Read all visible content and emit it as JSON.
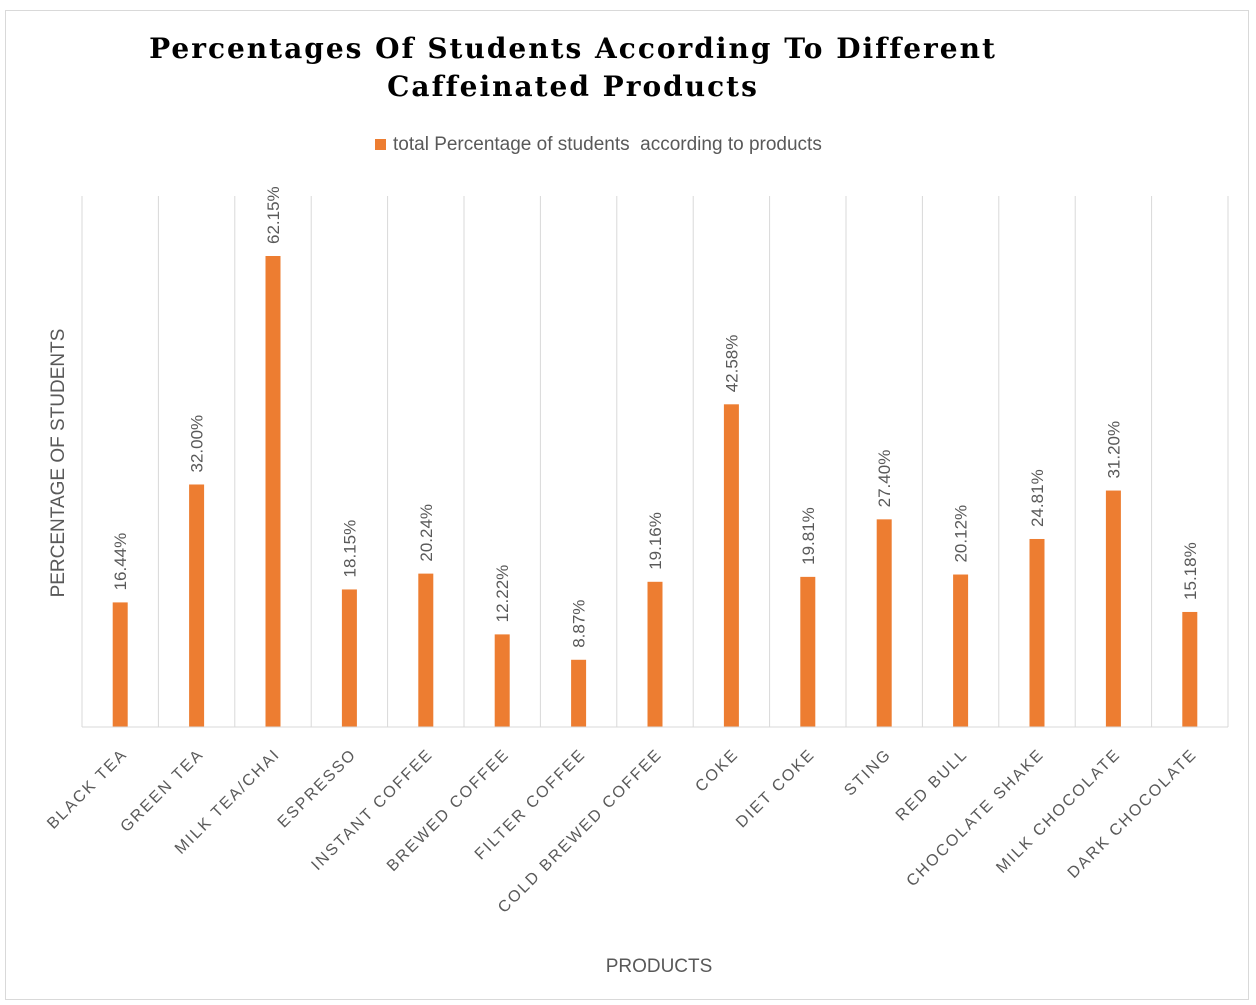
{
  "chart_data": {
    "type": "bar",
    "title": [
      "Percentages Of Students According To Different",
      "Caffeinated Products"
    ],
    "xlabel": "PRODUCTS",
    "ylabel": "PERCENTAGE OF STUDENTS",
    "legend": {
      "position": "top",
      "entries": [
        "total Percentage of students  according to products"
      ]
    },
    "grid": {
      "vertical_category_lines": true,
      "horizontal": false
    },
    "categories": [
      "BLACK TEA",
      "GREEN TEA",
      "MILK TEA/CHAI",
      "ESPRESSO",
      "INSTANT COFFEE",
      "BREWED COFFEE",
      "FILTER COFFEE",
      "COLD BREWED COFFEE",
      "COKE",
      "DIET COKE",
      "STING",
      "RED BULL",
      "CHOCOLATE SHAKE",
      "MILK CHOCOLATE",
      "DARK CHOCOLATE"
    ],
    "series": [
      {
        "name": "total Percentage of students  according to products",
        "values": [
          16.44,
          32.0,
          62.15,
          18.15,
          20.24,
          12.22,
          8.87,
          19.16,
          42.58,
          19.81,
          27.4,
          20.12,
          24.81,
          31.2,
          15.18
        ],
        "data_labels": [
          "16.44%",
          "32.00%",
          "62.15%",
          "18.15%",
          "20.24%",
          "12.22%",
          "8.87%",
          "19.16%",
          "42.58%",
          "19.81%",
          "27.40%",
          "20.12%",
          "24.81%",
          "31.20%",
          "15.18%"
        ],
        "color": "#ED7D31"
      }
    ],
    "ylim": [
      0,
      62.15
    ]
  }
}
